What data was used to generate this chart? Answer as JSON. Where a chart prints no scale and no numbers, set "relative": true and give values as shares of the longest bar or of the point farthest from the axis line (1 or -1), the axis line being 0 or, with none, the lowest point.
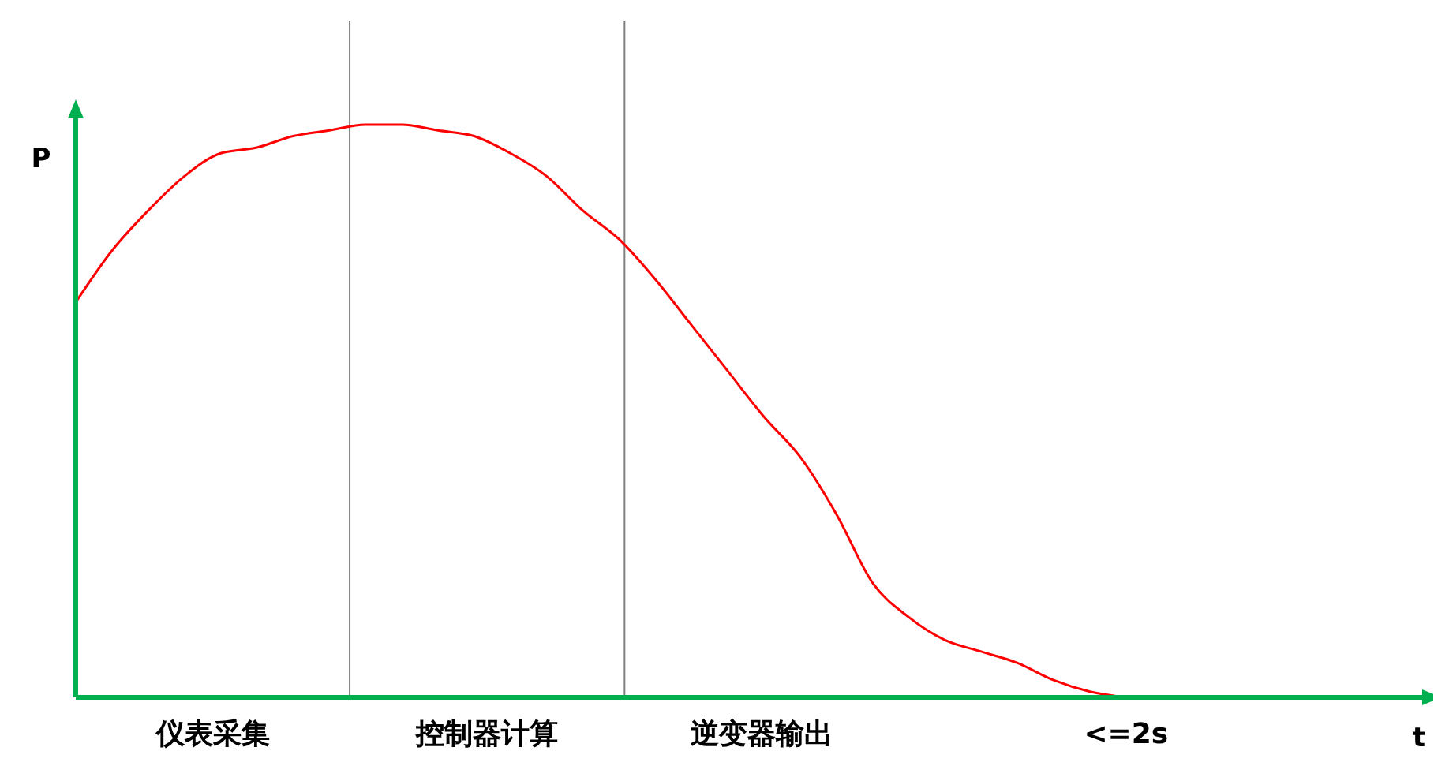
{
  "chart_data": {
    "type": "line",
    "relative": true,
    "xlabel": "t",
    "ylabel": "P",
    "categories": [
      null,
      null,
      null,
      null,
      null,
      null,
      null,
      null,
      null,
      null,
      null,
      null,
      null,
      null,
      null,
      null,
      null,
      null,
      null,
      null,
      null,
      null,
      null,
      null,
      null,
      null,
      null,
      null,
      null,
      null,
      null,
      null,
      null,
      null,
      null,
      null,
      null,
      null
    ],
    "series": [
      {
        "color": "#ff0000",
        "values": [
          0.69,
          0.78,
          0.85,
          0.91,
          0.95,
          0.96,
          0.98,
          0.99,
          1.0,
          1.0,
          0.99,
          0.98,
          0.95,
          0.91,
          0.85,
          0.8,
          0.73,
          0.65,
          0.57,
          0.49,
          0.42,
          0.32,
          0.2,
          0.14,
          0.1,
          0.08,
          0.06,
          0.03,
          0.01,
          0,
          null,
          null,
          null,
          null,
          null,
          null,
          null,
          null
        ]
      }
    ],
    "annotations": [
      "仪表采集",
      "控制器计算",
      "逆变器输出",
      "<=2s"
    ]
  }
}
